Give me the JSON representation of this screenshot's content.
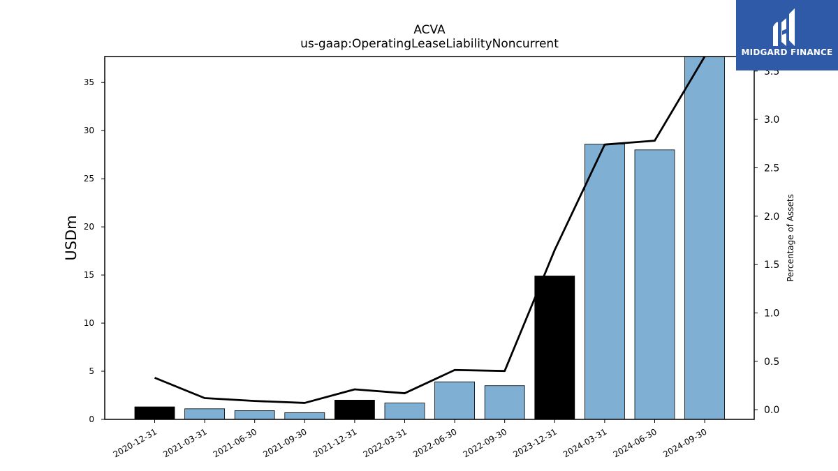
{
  "chart_data": {
    "type": "bar",
    "title": "ACVA",
    "subtitle": "us-gaap:OperatingLeaseLiabilityNoncurrent",
    "ylabel": "USDm",
    "y2label": "Percentage of Assets",
    "categories": [
      "2020-12-31",
      "2021-03-31",
      "2021-06-30",
      "2021-09-30",
      "2021-12-31",
      "2022-03-31",
      "2022-06-30",
      "2022-09-30",
      "2023-12-31",
      "2024-03-31",
      "2024-06-30",
      "2024-09-30"
    ],
    "series": [
      {
        "values": [
          1.3,
          1.1,
          0.9,
          0.7,
          2.0,
          1.7,
          3.9,
          3.5,
          14.9,
          28.6,
          28.0,
          37.7
        ],
        "annual": [
          true,
          false,
          false,
          false,
          true,
          false,
          false,
          false,
          true,
          false,
          false,
          false
        ]
      },
      {
        "values": [
          0.33,
          0.12,
          0.09,
          0.07,
          0.21,
          0.17,
          0.41,
          0.4,
          1.65,
          2.74,
          2.78,
          3.65
        ]
      }
    ],
    "ylim": [
      0,
      37.7
    ],
    "y2lim": [
      -0.1,
      3.65
    ],
    "yticks": [
      0,
      5,
      10,
      15,
      20,
      25,
      30,
      35
    ],
    "y2ticks": [
      "0.0",
      "0.5",
      "1.0",
      "1.5",
      "2.0",
      "2.5",
      "3.0",
      "3.5"
    ],
    "colors": {
      "annual_bar": "#000000",
      "quarter_bar": "#7fb0d3",
      "line": "#000000"
    }
  },
  "logo": {
    "text": "MIDGARD FINANCE",
    "color": "#2f5aa8"
  }
}
